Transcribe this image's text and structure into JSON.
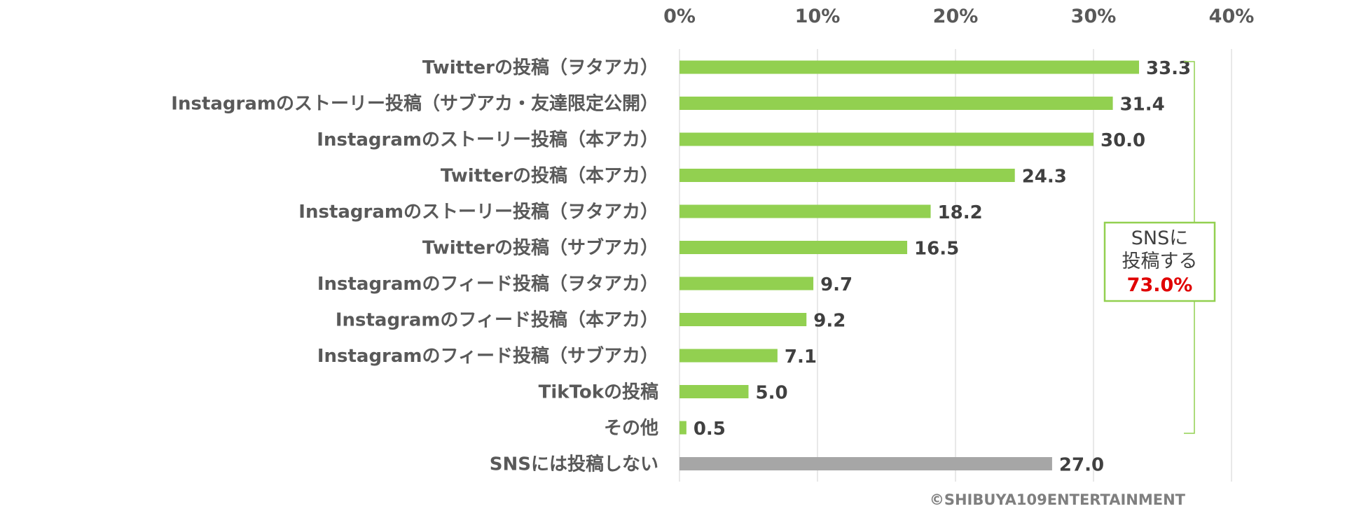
{
  "chart_data": {
    "type": "bar",
    "orientation": "horizontal",
    "categories": [
      "Twitterの投稿（ヲタアカ）",
      "Instagramのストーリー投稿（サブアカ・友達限定公開）",
      "Instagramのストーリー投稿（本アカ）",
      "Twitterの投稿（本アカ）",
      "Instagramのストーリー投稿（ヲタアカ）",
      "Twitterの投稿（サブアカ）",
      "Instagramのフィード投稿（ヲタアカ）",
      "Instagramのフィード投稿（本アカ）",
      "Instagramのフィード投稿（サブアカ）",
      "TikTokの投稿",
      "その他",
      "SNSには投稿しない"
    ],
    "values": [
      33.3,
      31.4,
      30.0,
      24.3,
      18.2,
      16.5,
      9.7,
      9.2,
      7.1,
      5.0,
      0.5,
      27.0
    ],
    "value_labels": [
      "33.3",
      "31.4",
      "30.0",
      "24.3",
      "18.2",
      "16.5",
      "9.7",
      "9.2",
      "7.1",
      "5.0",
      "0.5",
      "27.0"
    ],
    "bar_colors": [
      "#92d050",
      "#92d050",
      "#92d050",
      "#92d050",
      "#92d050",
      "#92d050",
      "#92d050",
      "#92d050",
      "#92d050",
      "#92d050",
      "#92d050",
      "#a6a6a6"
    ],
    "xlim": [
      0,
      40
    ],
    "xticks": [
      0,
      10,
      20,
      30,
      40
    ],
    "xtick_labels": [
      "0%",
      "10%",
      "20%",
      "30%",
      "40%"
    ],
    "x_axis_position": "top",
    "grid": true,
    "annotation": {
      "line1": "SNSに",
      "line2": "投稿する",
      "percent": "73.0%",
      "percent_color": "#e00000",
      "border_color": "#92d050",
      "bracket_spans_categories": [
        0,
        10
      ]
    },
    "copyright": "©SHIBUYA109ENTERTAINMENT"
  }
}
